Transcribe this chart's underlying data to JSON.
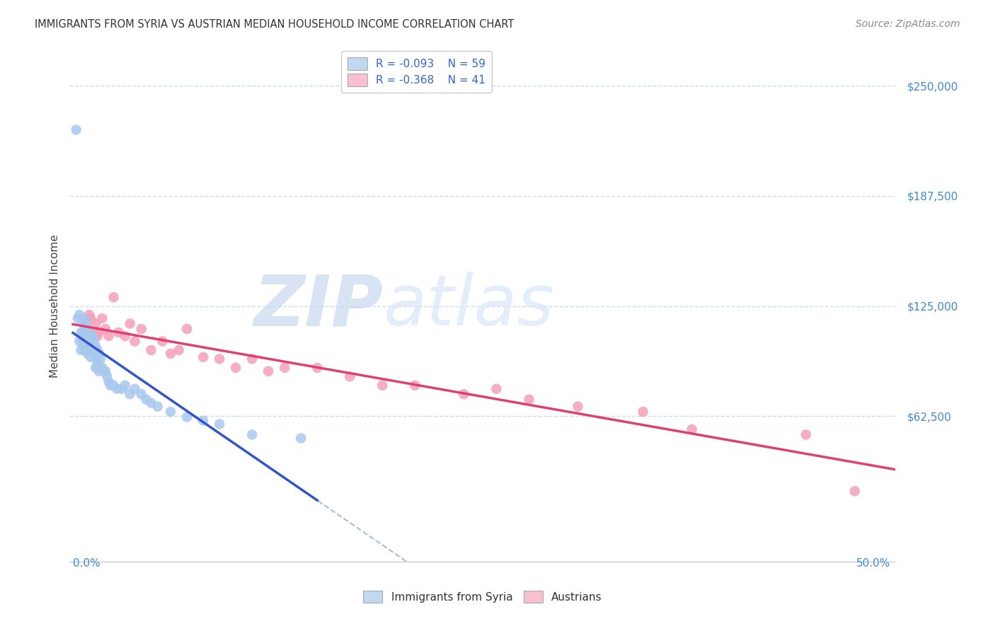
{
  "title": "IMMIGRANTS FROM SYRIA VS AUSTRIAN MEDIAN HOUSEHOLD INCOME CORRELATION CHART",
  "source": "Source: ZipAtlas.com",
  "ylabel": "Median Household Income",
  "xlim": [
    -0.002,
    0.505
  ],
  "ylim": [
    -20000,
    270000
  ],
  "ytick_vals": [
    62500,
    125000,
    187500,
    250000
  ],
  "legend_color": "#3366cc",
  "bg_color": "#ffffff",
  "watermark_zip": "ZIP",
  "watermark_atlas": "atlas",
  "blue_scatter_color": "#a8c8ee",
  "pink_scatter_color": "#f4a0b8",
  "blue_line_color": "#3355cc",
  "pink_line_color": "#e04070",
  "dash_line_color": "#aabbdd",
  "grid_color": "#d0dce8",
  "title_color": "#333333",
  "source_color": "#888888",
  "ylabel_color": "#444444",
  "xtick_color": "#4488cc",
  "ytick_color": "#4488cc",
  "blue_x": [
    0.002,
    0.003,
    0.004,
    0.004,
    0.005,
    0.005,
    0.006,
    0.006,
    0.006,
    0.007,
    0.007,
    0.007,
    0.007,
    0.008,
    0.008,
    0.008,
    0.009,
    0.009,
    0.009,
    0.01,
    0.01,
    0.01,
    0.011,
    0.011,
    0.011,
    0.012,
    0.012,
    0.013,
    0.013,
    0.014,
    0.014,
    0.014,
    0.015,
    0.015,
    0.016,
    0.016,
    0.017,
    0.018,
    0.019,
    0.02,
    0.021,
    0.022,
    0.023,
    0.025,
    0.027,
    0.03,
    0.032,
    0.035,
    0.038,
    0.042,
    0.045,
    0.048,
    0.052,
    0.06,
    0.07,
    0.08,
    0.09,
    0.11,
    0.14
  ],
  "blue_y": [
    225000,
    118000,
    120000,
    105000,
    110000,
    100000,
    116000,
    110000,
    105000,
    118000,
    112000,
    108000,
    100000,
    115000,
    108000,
    100000,
    110000,
    105000,
    98000,
    110000,
    105000,
    100000,
    108000,
    102000,
    96000,
    108000,
    100000,
    105000,
    98000,
    102000,
    96000,
    90000,
    100000,
    92000,
    98000,
    88000,
    95000,
    90000,
    88000,
    88000,
    85000,
    82000,
    80000,
    80000,
    78000,
    78000,
    80000,
    75000,
    78000,
    75000,
    72000,
    70000,
    68000,
    65000,
    62000,
    60000,
    58000,
    52000,
    50000
  ],
  "pink_x": [
    0.008,
    0.009,
    0.01,
    0.011,
    0.012,
    0.013,
    0.014,
    0.015,
    0.016,
    0.018,
    0.02,
    0.022,
    0.025,
    0.028,
    0.032,
    0.035,
    0.038,
    0.042,
    0.048,
    0.055,
    0.06,
    0.065,
    0.07,
    0.08,
    0.09,
    0.1,
    0.11,
    0.12,
    0.13,
    0.15,
    0.17,
    0.19,
    0.21,
    0.24,
    0.26,
    0.28,
    0.31,
    0.35,
    0.38,
    0.45,
    0.48
  ],
  "pink_y": [
    115000,
    112000,
    120000,
    118000,
    108000,
    110000,
    115000,
    108000,
    110000,
    118000,
    112000,
    108000,
    130000,
    110000,
    108000,
    115000,
    105000,
    112000,
    100000,
    105000,
    98000,
    100000,
    112000,
    96000,
    95000,
    90000,
    95000,
    88000,
    90000,
    90000,
    85000,
    80000,
    80000,
    75000,
    78000,
    72000,
    68000,
    65000,
    55000,
    52000,
    20000
  ]
}
